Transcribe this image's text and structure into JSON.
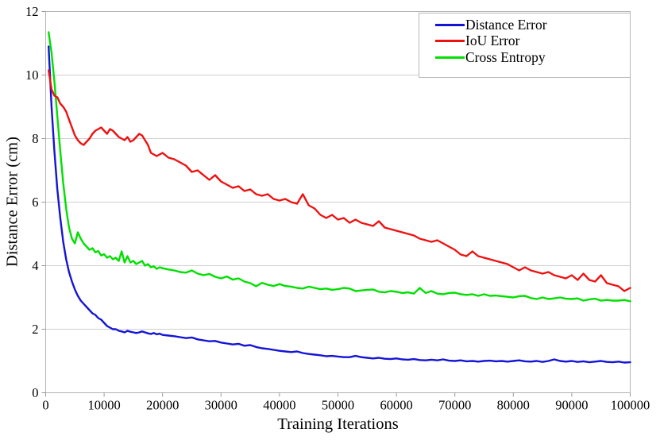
{
  "chart_data": {
    "type": "line",
    "title": "",
    "xlabel": "Training Iterations",
    "ylabel": "Distance Error (cm)",
    "xlim": [
      0,
      100000
    ],
    "ylim": [
      0,
      12
    ],
    "x_ticks": [
      0,
      10000,
      20000,
      30000,
      40000,
      50000,
      60000,
      70000,
      80000,
      90000,
      100000
    ],
    "y_ticks": [
      0,
      2,
      4,
      6,
      8,
      10,
      12
    ],
    "grid": "horizontal-only",
    "legend_position": "top-right",
    "frame_color": "#b4b4b4",
    "grid_color": "#d0d0d0",
    "tick_color": "#9a9a9a",
    "x": [
      500,
      1000,
      1500,
      2000,
      2500,
      3000,
      3500,
      4000,
      4500,
      5000,
      5500,
      6000,
      6500,
      7000,
      7500,
      8000,
      8500,
      9000,
      9500,
      10000,
      10500,
      11000,
      11500,
      12000,
      12500,
      13000,
      13500,
      14000,
      14500,
      15000,
      15500,
      16000,
      16500,
      17000,
      17500,
      18000,
      18500,
      19000,
      19500,
      20000,
      21000,
      22000,
      23000,
      24000,
      25000,
      26000,
      27000,
      28000,
      29000,
      30000,
      31000,
      32000,
      33000,
      34000,
      35000,
      36000,
      37000,
      38000,
      39000,
      40000,
      41000,
      42000,
      43000,
      44000,
      45000,
      46000,
      47000,
      48000,
      49000,
      50000,
      51000,
      52000,
      53000,
      54000,
      55000,
      56000,
      57000,
      58000,
      59000,
      60000,
      61000,
      62000,
      63000,
      64000,
      65000,
      66000,
      67000,
      68000,
      69000,
      70000,
      71000,
      72000,
      73000,
      74000,
      75000,
      76000,
      77000,
      78000,
      79000,
      80000,
      81000,
      82000,
      83000,
      84000,
      85000,
      86000,
      87000,
      88000,
      89000,
      90000,
      91000,
      92000,
      93000,
      94000,
      95000,
      96000,
      97000,
      98000,
      99000,
      100000
    ],
    "series": [
      {
        "name": "Distance Error",
        "color": "#1414d6",
        "values": [
          10.9,
          9.0,
          7.6,
          6.4,
          5.5,
          4.75,
          4.2,
          3.8,
          3.5,
          3.25,
          3.05,
          2.9,
          2.8,
          2.7,
          2.6,
          2.5,
          2.45,
          2.35,
          2.3,
          2.2,
          2.1,
          2.05,
          2.0,
          2.0,
          1.95,
          1.93,
          1.9,
          1.95,
          1.92,
          1.9,
          1.88,
          1.9,
          1.93,
          1.9,
          1.87,
          1.85,
          1.88,
          1.84,
          1.86,
          1.82,
          1.8,
          1.78,
          1.75,
          1.72,
          1.74,
          1.68,
          1.65,
          1.62,
          1.63,
          1.58,
          1.55,
          1.52,
          1.54,
          1.48,
          1.5,
          1.44,
          1.4,
          1.38,
          1.35,
          1.32,
          1.3,
          1.28,
          1.3,
          1.25,
          1.22,
          1.2,
          1.18,
          1.15,
          1.16,
          1.14,
          1.12,
          1.12,
          1.16,
          1.12,
          1.1,
          1.08,
          1.1,
          1.07,
          1.06,
          1.08,
          1.05,
          1.04,
          1.06,
          1.03,
          1.02,
          1.04,
          1.02,
          1.05,
          1.01,
          1.0,
          1.02,
          0.99,
          1.0,
          0.98,
          1.0,
          1.01,
          0.99,
          1.0,
          0.98,
          1.0,
          1.02,
          0.99,
          0.98,
          1.0,
          0.97,
          1.0,
          1.05,
          1.0,
          0.98,
          1.0,
          0.97,
          0.99,
          0.96,
          0.98,
          1.0,
          0.97,
          0.96,
          0.98,
          0.95,
          0.96
        ]
      },
      {
        "name": "IoU Error",
        "color": "#ee1111",
        "values": [
          10.15,
          9.55,
          9.35,
          9.3,
          9.1,
          9.0,
          8.85,
          8.6,
          8.35,
          8.1,
          7.95,
          7.85,
          7.8,
          7.9,
          8.0,
          8.15,
          8.25,
          8.3,
          8.35,
          8.25,
          8.15,
          8.3,
          8.25,
          8.15,
          8.05,
          8.0,
          7.95,
          8.05,
          7.9,
          7.95,
          8.05,
          8.15,
          8.1,
          7.95,
          7.8,
          7.55,
          7.5,
          7.45,
          7.5,
          7.55,
          7.4,
          7.35,
          7.25,
          7.15,
          6.95,
          7.0,
          6.85,
          6.7,
          6.85,
          6.65,
          6.55,
          6.45,
          6.5,
          6.35,
          6.4,
          6.25,
          6.2,
          6.25,
          6.1,
          6.05,
          6.1,
          6.0,
          5.95,
          6.25,
          5.9,
          5.8,
          5.6,
          5.5,
          5.6,
          5.45,
          5.5,
          5.35,
          5.45,
          5.35,
          5.3,
          5.25,
          5.4,
          5.2,
          5.15,
          5.1,
          5.05,
          5.0,
          4.95,
          4.85,
          4.8,
          4.75,
          4.8,
          4.7,
          4.6,
          4.5,
          4.35,
          4.3,
          4.45,
          4.3,
          4.25,
          4.2,
          4.15,
          4.1,
          4.05,
          3.95,
          3.85,
          3.95,
          3.85,
          3.8,
          3.75,
          3.8,
          3.7,
          3.65,
          3.6,
          3.7,
          3.55,
          3.75,
          3.55,
          3.5,
          3.7,
          3.45,
          3.4,
          3.35,
          3.2,
          3.3
        ]
      },
      {
        "name": "Cross Entropy",
        "color": "#00e000",
        "values": [
          11.35,
          10.7,
          9.8,
          8.7,
          7.6,
          6.6,
          5.8,
          5.2,
          4.85,
          4.7,
          5.05,
          4.85,
          4.7,
          4.6,
          4.5,
          4.55,
          4.42,
          4.46,
          4.32,
          4.36,
          4.25,
          4.3,
          4.2,
          4.25,
          4.15,
          4.45,
          4.1,
          4.3,
          4.1,
          4.15,
          4.05,
          4.1,
          4.15,
          4.0,
          4.05,
          3.95,
          3.98,
          3.9,
          3.95,
          3.92,
          3.88,
          3.85,
          3.8,
          3.78,
          3.85,
          3.75,
          3.7,
          3.74,
          3.65,
          3.6,
          3.66,
          3.56,
          3.6,
          3.5,
          3.45,
          3.35,
          3.46,
          3.4,
          3.36,
          3.42,
          3.36,
          3.34,
          3.3,
          3.28,
          3.34,
          3.3,
          3.26,
          3.28,
          3.24,
          3.26,
          3.3,
          3.28,
          3.2,
          3.22,
          3.24,
          3.25,
          3.18,
          3.16,
          3.2,
          3.18,
          3.14,
          3.16,
          3.12,
          3.3,
          3.14,
          3.2,
          3.12,
          3.1,
          3.14,
          3.15,
          3.1,
          3.08,
          3.1,
          3.05,
          3.1,
          3.05,
          3.06,
          3.04,
          3.02,
          3.0,
          3.04,
          3.05,
          2.98,
          2.95,
          3.0,
          2.95,
          2.97,
          3.0,
          2.96,
          2.95,
          2.97,
          2.9,
          2.94,
          2.96,
          2.9,
          2.92,
          2.9,
          2.9,
          2.92,
          2.88
        ]
      }
    ],
    "draw_order": [
      0,
      2,
      1
    ]
  }
}
